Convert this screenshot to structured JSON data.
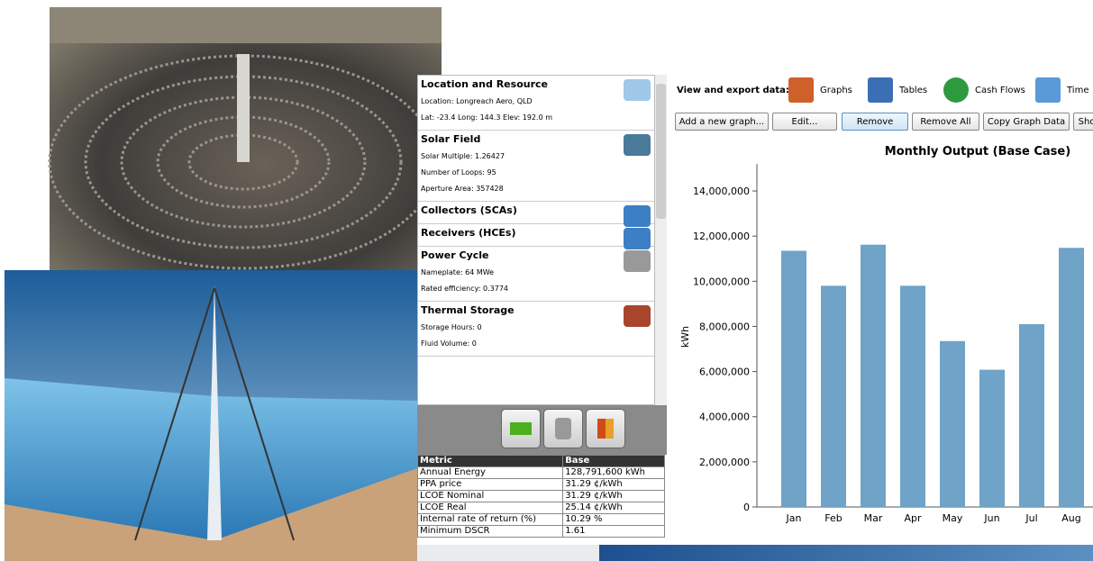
{
  "sidebar": [
    {
      "title": "Location and Resource",
      "lines": [
        "Location: Longreach Aero, QLD",
        "Lat: -23.4 Long: 144.3 Elev: 192.0 m"
      ]
    },
    {
      "title": "Solar Field",
      "lines": [
        "Solar Multiple: 1.26427",
        "Number of Loops: 95",
        "Aperture Area: 357428"
      ]
    },
    {
      "title": "Collectors (SCAs)",
      "lines": []
    },
    {
      "title": "Receivers (HCEs)",
      "lines": []
    },
    {
      "title": "Power Cycle",
      "lines": [
        "Nameplate: 64 MWe",
        "Rated efficiency: 0.3774"
      ]
    },
    {
      "title": "Thermal Storage",
      "lines": [
        "Storage Hours: 0",
        "Fluid Volume: 0"
      ]
    }
  ],
  "metrics": {
    "header": [
      "Metric",
      "Base"
    ],
    "rows": [
      [
        "Annual Energy",
        "128,791,600 kWh"
      ],
      [
        "PPA price",
        "31.29 ¢/kWh"
      ],
      [
        "LCOE Nominal",
        "31.29 ¢/kWh"
      ],
      [
        "LCOE Real",
        "25.14 ¢/kWh"
      ],
      [
        "Internal rate of return (%)",
        "10.29 %"
      ],
      [
        "Minimum DSCR",
        "1.61"
      ]
    ]
  },
  "toolbar": {
    "label": "View and export data:",
    "tabs": [
      "Graphs",
      "Tables",
      "Cash Flows",
      "Time"
    ],
    "buttons": [
      "Add a new graph...",
      "Edit...",
      "Remove",
      "Remove All",
      "Copy Graph Data",
      "Sho"
    ]
  },
  "chart_data": {
    "type": "bar",
    "title": "Monthly Output (Base Case)",
    "y_label": "kWh",
    "categories": [
      "Jan",
      "Feb",
      "Mar",
      "Apr",
      "May",
      "Jun",
      "Jul",
      "Aug"
    ],
    "values": [
      11350000,
      9800000,
      11620000,
      9800000,
      7350000,
      6080000,
      8100000,
      11480000
    ],
    "color": "#6fa3c7",
    "ylim": [
      0,
      15200000
    ],
    "yticks": [
      {
        "value": 0,
        "label": "0"
      },
      {
        "value": 2000000,
        "label": "2,000,000"
      },
      {
        "value": 4000000,
        "label": "4,000,000"
      },
      {
        "value": 6000000,
        "label": "6,000,000"
      },
      {
        "value": 8000000,
        "label": "8,000,000"
      },
      {
        "value": 10000000,
        "label": "10,000,000"
      },
      {
        "value": 12000000,
        "label": "12,000,000"
      },
      {
        "value": 14000000,
        "label": "14,000,000"
      }
    ]
  }
}
